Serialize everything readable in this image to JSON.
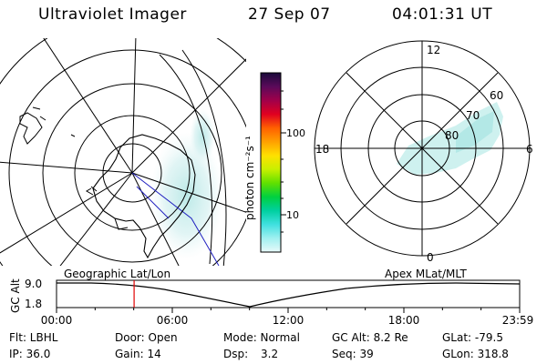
{
  "header": {
    "instrument": "Ultraviolet Imager",
    "date": "27 Sep 07",
    "time": "04:01:31 UT"
  },
  "colorbar": {
    "unit_label": "photon cm⁻²s⁻¹",
    "ticks": [
      "100",
      "10"
    ],
    "stops": [
      "#1a0a3a",
      "#5a0a5a",
      "#a0004a",
      "#e00020",
      "#ff6000",
      "#ffa000",
      "#ffe000",
      "#c8f000",
      "#60e000",
      "#00d040",
      "#00d0a0",
      "#40e0e0",
      "#a0f0f0",
      "#e8fafa"
    ]
  },
  "geo_map": {
    "projection_label": "Geographic Lat/Lon"
  },
  "polar_plot": {
    "projection_label": "Apex MLat/MLT",
    "mlt_labels": {
      "top": "12",
      "bottom": "0",
      "left": "18",
      "right": "6"
    },
    "lat_labels": [
      "60",
      "70",
      "80"
    ]
  },
  "timeline": {
    "ylabel": "GC Alt",
    "y_ticks": [
      "9.0",
      "1.8"
    ],
    "x_ticks": [
      "00:00",
      "06:00",
      "12:00",
      "18:00",
      "23:59"
    ],
    "marker_hour": 4.02,
    "marker_color": "#e00000"
  },
  "info": {
    "filter": "Flt: LBHL",
    "ip": "IP: 36.0",
    "door": "Door: Open",
    "gain": "Gain: 14",
    "mode": "Mode: Normal",
    "dsp_label": "Dsp:",
    "dsp_value": "3.2",
    "gc_alt": "GC Alt: 8.2 Re",
    "seq": "Seq: 39",
    "glat": "GLat: -79.5",
    "glon": "GLon: 318.8"
  }
}
